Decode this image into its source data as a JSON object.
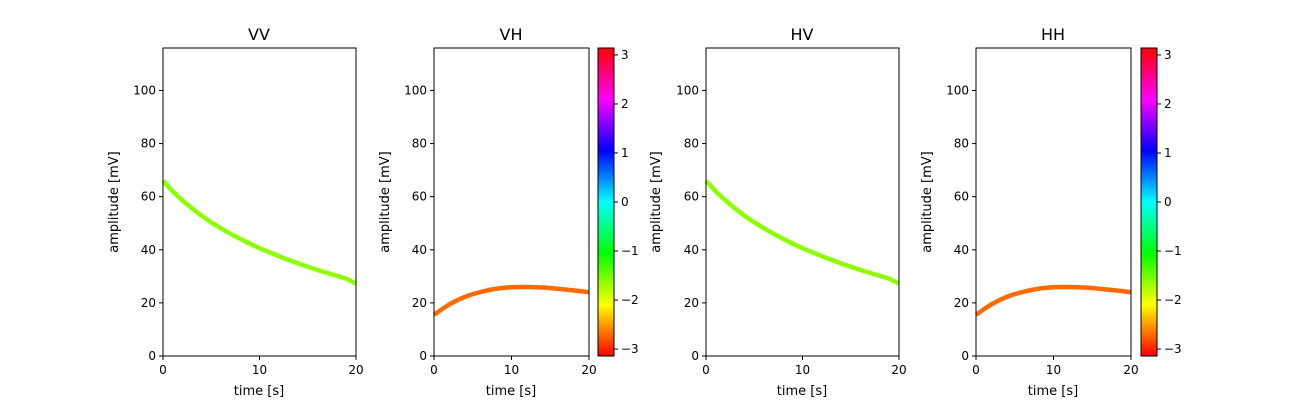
{
  "chart_data": [
    {
      "type": "line",
      "title": "VV",
      "xlabel": "time [s]",
      "ylabel": "amplitude [mV]",
      "xlim": [
        0,
        20
      ],
      "ylim": [
        0,
        116
      ],
      "xticks": [
        0,
        10,
        20
      ],
      "yticks": [
        0,
        20,
        40,
        60,
        80,
        100
      ],
      "grid": false,
      "series": [
        {
          "color": "#8cff00",
          "x": [
            0,
            1,
            2,
            3,
            4,
            5,
            6,
            7,
            8,
            9,
            10,
            11,
            12,
            13,
            14,
            15,
            16,
            17,
            18,
            19,
            20
          ],
          "y": [
            66,
            62,
            58.6,
            55.6,
            52.8,
            50.3,
            48.1,
            46,
            44.1,
            42.3,
            40.6,
            39.1,
            37.6,
            36.2,
            34.9,
            33.6,
            32.4,
            31.3,
            30.2,
            29.1,
            27.2
          ]
        }
      ]
    },
    {
      "type": "line",
      "title": "VH",
      "xlabel": "time [s]",
      "ylabel": "amplitude [mV]",
      "xlim": [
        0,
        20
      ],
      "ylim": [
        0,
        116
      ],
      "xticks": [
        0,
        10,
        20
      ],
      "yticks": [
        0,
        20,
        40,
        60,
        80,
        100
      ],
      "grid": false,
      "series": [
        {
          "color": "#ff6a00",
          "x": [
            0,
            1,
            2,
            3,
            4,
            5,
            6,
            7,
            8,
            9,
            10,
            11,
            12,
            13,
            14,
            15,
            16,
            17,
            18,
            19,
            20
          ],
          "y": [
            15.5,
            17.6,
            19.5,
            21,
            22.3,
            23.3,
            24.1,
            24.8,
            25.3,
            25.7,
            25.9,
            26,
            26,
            25.9,
            25.8,
            25.6,
            25.3,
            25,
            24.7,
            24.4,
            24
          ]
        }
      ]
    },
    {
      "type": "line",
      "title": "HV",
      "xlabel": "time [s]",
      "ylabel": "amplitude [mV]",
      "xlim": [
        0,
        20
      ],
      "ylim": [
        0,
        116
      ],
      "xticks": [
        0,
        10,
        20
      ],
      "yticks": [
        0,
        20,
        40,
        60,
        80,
        100
      ],
      "grid": false,
      "series": [
        {
          "color": "#8cff00",
          "x": [
            0,
            1,
            2,
            3,
            4,
            5,
            6,
            7,
            8,
            9,
            10,
            11,
            12,
            13,
            14,
            15,
            16,
            17,
            18,
            19,
            20
          ],
          "y": [
            66,
            62,
            58.6,
            55.6,
            52.8,
            50.3,
            48.1,
            46,
            44.1,
            42.3,
            40.6,
            39.1,
            37.6,
            36.2,
            34.9,
            33.6,
            32.4,
            31.3,
            30.2,
            29.1,
            27.2
          ]
        }
      ]
    },
    {
      "type": "line",
      "title": "HH",
      "xlabel": "time [s]",
      "ylabel": "amplitude [mV]",
      "xlim": [
        0,
        20
      ],
      "ylim": [
        0,
        116
      ],
      "xticks": [
        0,
        10,
        20
      ],
      "yticks": [
        0,
        20,
        40,
        60,
        80,
        100
      ],
      "grid": false,
      "series": [
        {
          "color": "#ff6a00",
          "x": [
            0,
            1,
            2,
            3,
            4,
            5,
            6,
            7,
            8,
            9,
            10,
            11,
            12,
            13,
            14,
            15,
            16,
            17,
            18,
            19,
            20
          ],
          "y": [
            15.5,
            17.6,
            19.5,
            21,
            22.3,
            23.3,
            24.1,
            24.8,
            25.3,
            25.7,
            25.9,
            26,
            26,
            25.9,
            25.8,
            25.6,
            25.3,
            25,
            24.7,
            24.4,
            24
          ]
        }
      ]
    }
  ],
  "colorbar": {
    "range": [
      -3.14159,
      3.14159
    ],
    "ticks": [
      -3,
      -2,
      -1,
      0,
      1,
      2,
      3
    ],
    "tick_labels": [
      "−3",
      "−2",
      "−1",
      "0",
      "1",
      "2",
      "3"
    ],
    "colormap": "hsv"
  }
}
